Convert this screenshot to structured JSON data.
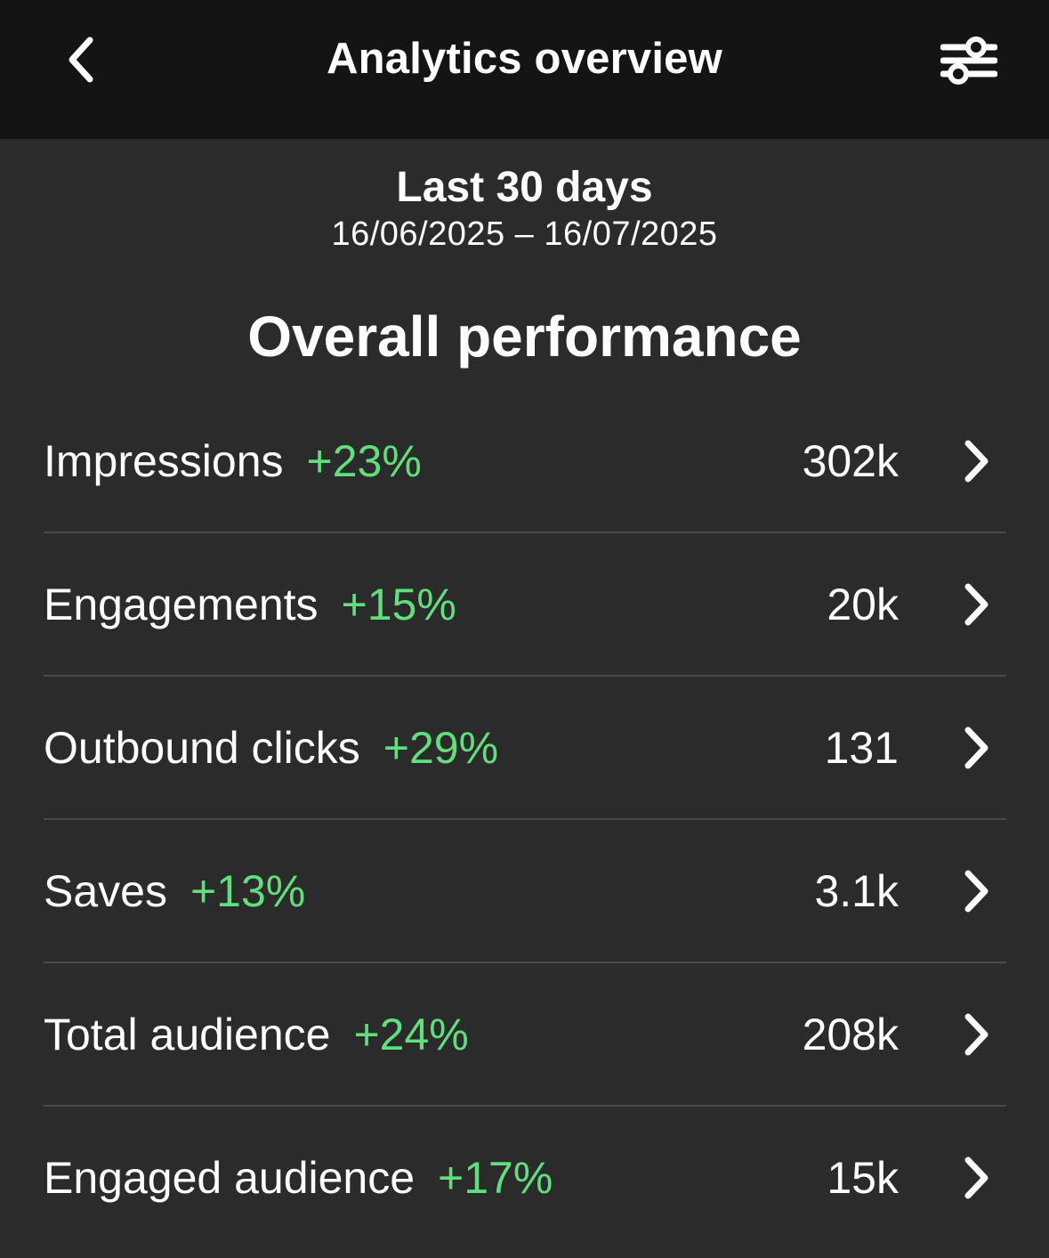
{
  "header": {
    "title": "Analytics overview",
    "back_icon": "chevron-left-icon",
    "filter_icon": "sliders-icon"
  },
  "period": {
    "label": "Last 30 days",
    "range": "16/06/2025 – 16/07/2025"
  },
  "section": {
    "title": "Overall performance"
  },
  "colors": {
    "header_bg": "#141414",
    "page_bg": "#2b2b2b",
    "positive": "#5fe07c",
    "divider": "#4a4a4a"
  },
  "metrics": [
    {
      "name": "Impressions",
      "change": "+23%",
      "value": "302k"
    },
    {
      "name": "Engagements",
      "change": "+15%",
      "value": "20k"
    },
    {
      "name": "Outbound clicks",
      "change": "+29%",
      "value": "131"
    },
    {
      "name": "Saves",
      "change": "+13%",
      "value": "3.1k"
    },
    {
      "name": "Total audience",
      "change": "+24%",
      "value": "208k"
    },
    {
      "name": "Engaged audience",
      "change": "+17%",
      "value": "15k"
    }
  ]
}
